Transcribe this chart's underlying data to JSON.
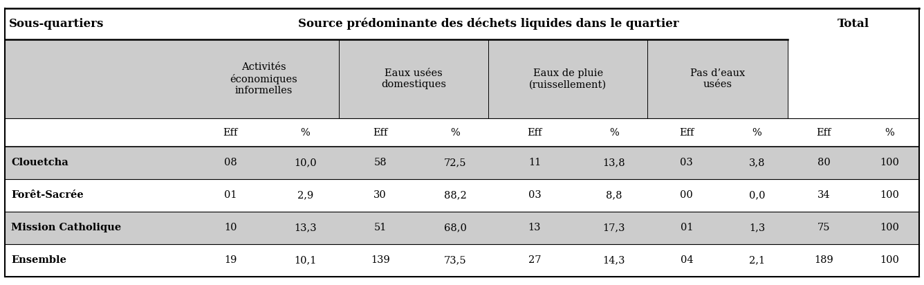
{
  "title_left": "Sous-quartiers",
  "title_center": "Source prédominante des déchets liquides dans le quartier",
  "title_right": "Total",
  "col_headers": [
    "Activités\néconomiques\ninformelles",
    "Eaux usées\ndomestiques",
    "Eaux de pluie\n(ruissellement)",
    "Pas d’eaux\nusées"
  ],
  "sub_headers": [
    "Eff",
    "%",
    "Eff",
    "%",
    "Eff",
    "%",
    "Eff",
    "%",
    "Eff",
    "%"
  ],
  "rows": [
    [
      "Clouetcha",
      "08",
      "10,0",
      "58",
      "72,5",
      "11",
      "13,8",
      "03",
      "3,8",
      "80",
      "100"
    ],
    [
      "Forêt-Sacrée",
      "01",
      "2,9",
      "30",
      "88,2",
      "03",
      "8,8",
      "00",
      "0,0",
      "34",
      "100"
    ],
    [
      "Mission Catholique",
      "10",
      "13,3",
      "51",
      "68,0",
      "13",
      "17,3",
      "01",
      "1,3",
      "75",
      "100"
    ],
    [
      "Ensemble",
      "19",
      "10,1",
      "139",
      "73,5",
      "27",
      "14,3",
      "04",
      "2,1",
      "189",
      "100"
    ]
  ],
  "row_shaded": [
    true,
    false,
    true,
    false
  ],
  "header_bg": "#cccccc",
  "shaded_row_bg": "#cccccc",
  "white_row_bg": "#ffffff",
  "text_color": "#000000",
  "fig_bg": "#ffffff",
  "font_size": 10.5
}
